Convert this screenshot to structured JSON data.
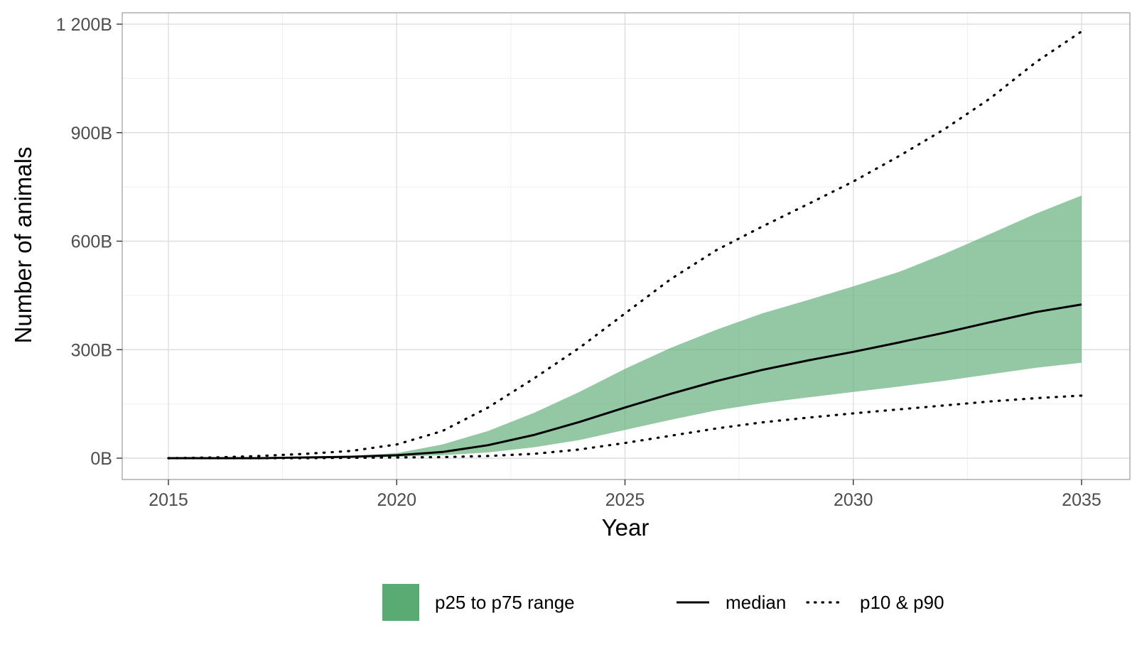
{
  "chart_data": {
    "type": "area",
    "title": "",
    "xlabel": "Year",
    "ylabel": "Number of animals",
    "xlim": [
      2015,
      2035
    ],
    "ylim": [
      0,
      1200
    ],
    "x_ticks": [
      2015,
      2020,
      2025,
      2030,
      2035
    ],
    "y_ticks": [
      0,
      300,
      600,
      900,
      1200
    ],
    "y_tick_labels": [
      "0B",
      "300B",
      "600B",
      "900B",
      "1 200B"
    ],
    "unit": "billions of animals",
    "grid": true,
    "x": [
      2015,
      2016,
      2017,
      2018,
      2019,
      2020,
      2021,
      2022,
      2023,
      2024,
      2025,
      2026,
      2027,
      2028,
      2029,
      2030,
      2031,
      2032,
      2033,
      2034,
      2035
    ],
    "series": [
      {
        "name": "p25 to p75 range",
        "style": "band",
        "lower": [
          0,
          0,
          0,
          1,
          2,
          4,
          8,
          16,
          30,
          50,
          78,
          106,
          132,
          152,
          168,
          183,
          198,
          214,
          232,
          250,
          264
        ],
        "upper": [
          0,
          0,
          1,
          3,
          6,
          14,
          38,
          75,
          125,
          183,
          247,
          305,
          355,
          400,
          437,
          475,
          515,
          565,
          620,
          676,
          726
        ]
      },
      {
        "name": "median",
        "style": "solid",
        "values": [
          0,
          0,
          0,
          2,
          4,
          8,
          17,
          36,
          64,
          100,
          140,
          178,
          213,
          244,
          270,
          294,
          320,
          347,
          376,
          404,
          425
        ]
      },
      {
        "name": "p10",
        "style": "dotted",
        "values": [
          0,
          0,
          0,
          0,
          1,
          2,
          3,
          6,
          12,
          24,
          42,
          62,
          82,
          99,
          112,
          124,
          135,
          146,
          157,
          166,
          173
        ]
      },
      {
        "name": "p90",
        "style": "dotted",
        "values": [
          0,
          2,
          6,
          12,
          20,
          38,
          75,
          140,
          220,
          305,
          400,
          495,
          575,
          640,
          702,
          765,
          835,
          910,
          995,
          1095,
          1180
        ]
      }
    ],
    "legend": {
      "position": "bottom",
      "items": [
        {
          "label": "p25 to p75 range",
          "style": "band"
        },
        {
          "label": "median",
          "style": "solid"
        },
        {
          "label": "p10 & p90",
          "style": "dotted"
        }
      ]
    },
    "colors": {
      "band_fill": "#5aaa73",
      "band_opacity": "0.65",
      "legend_swatch": "#5aaa73",
      "line": "#000000",
      "panel_border": "#b3b3b3",
      "grid_major": "#dedede",
      "grid_minor": "#efefef",
      "tick_text": "#4d4d4d"
    }
  }
}
